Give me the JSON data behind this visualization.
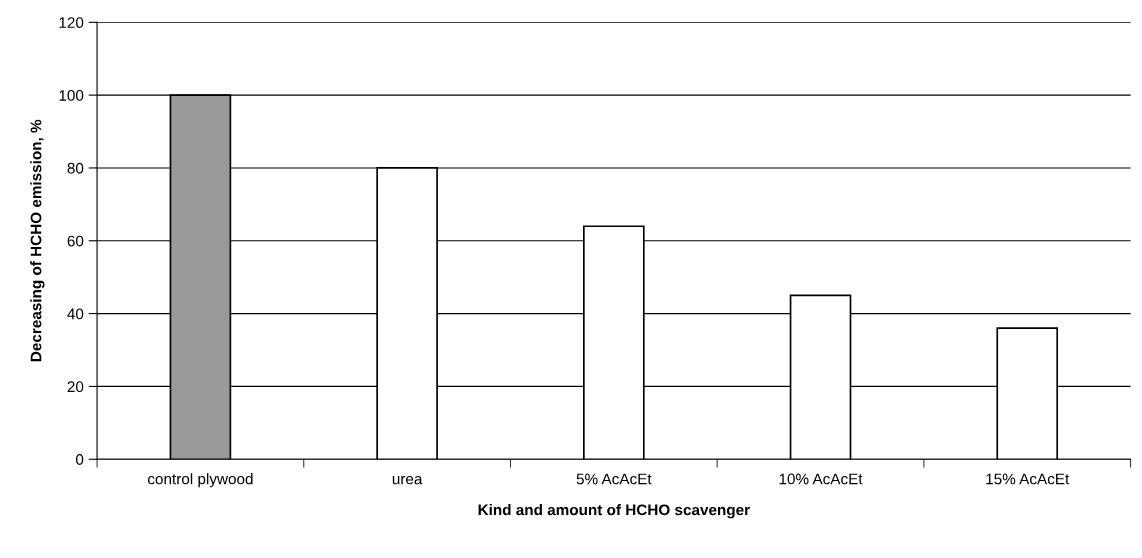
{
  "chart_data": {
    "type": "bar",
    "xlabel": "Kind and amount of HCHO scavenger",
    "ylabel": "Decreasing of HCHO emission, %",
    "categories": [
      "control plywood",
      "urea",
      "5% AcAcEt",
      "10% AcAcEt",
      "15% AcAcEt"
    ],
    "values": [
      100,
      80,
      64,
      45,
      36
    ],
    "colors": [
      "#999999",
      "#ffffff",
      "#ffffff",
      "#ffffff",
      "#ffffff"
    ],
    "ylim": [
      0,
      120
    ],
    "yticks": [
      0,
      20,
      40,
      60,
      80,
      100,
      120
    ],
    "grid": "y",
    "legend": false
  }
}
